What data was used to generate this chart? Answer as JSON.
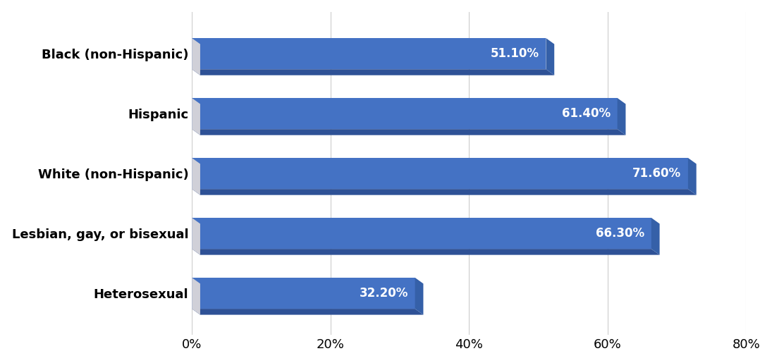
{
  "categories": [
    "Black (non-Hispanic)",
    "Hispanic",
    "White (non-Hispanic)",
    "Lesbian, gay, or bisexual",
    "Heterosexual"
  ],
  "values": [
    51.1,
    61.4,
    71.6,
    66.3,
    32.2
  ],
  "bar_color_face": "#4472C4",
  "bar_color_bottom": "#2E5196",
  "bar_color_right": "#3560A8",
  "bar_color_left_side": "#d0d0d8",
  "label_color": "#ffffff",
  "background_color": "#ffffff",
  "xlim": [
    0,
    80
  ],
  "xticks": [
    0,
    20,
    40,
    60,
    80
  ],
  "xticklabels": [
    "0%",
    "20%",
    "40%",
    "60%",
    "80%"
  ],
  "label_fontsize": 13,
  "tick_fontsize": 13,
  "value_fontsize": 12
}
